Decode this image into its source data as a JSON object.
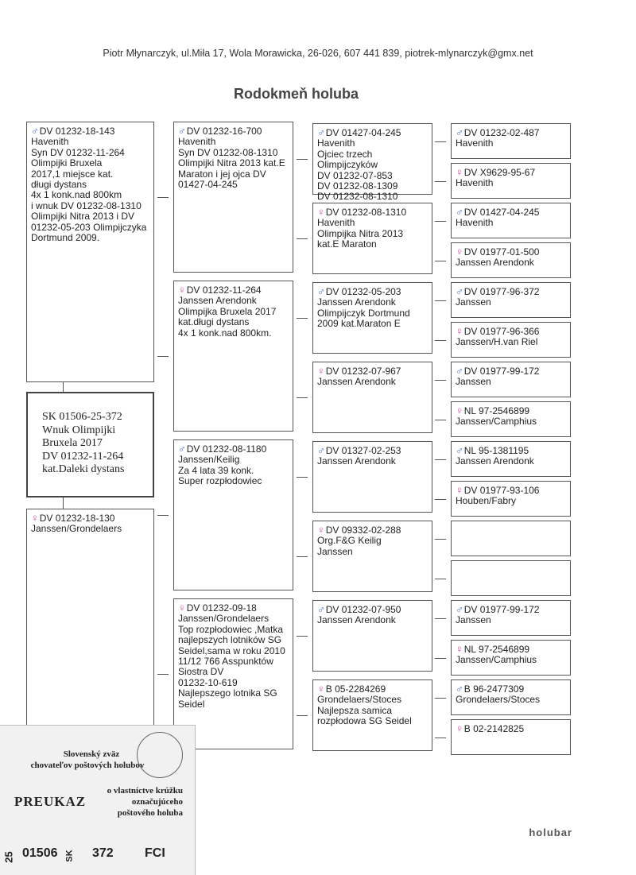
{
  "header": {
    "contact": "Piotr Młynarczyk, ul.Miła 17, Wola Morawicka, 26-026, 607 441 839, piotrek-mlynarczyk@gmx.net",
    "title": "Rodokmeň holuba"
  },
  "subject": {
    "lines": [
      "SK 01506-25-372",
      "Wnuk Olimpijki",
      "Bruxela 2017",
      "DV 01232-11-264",
      "kat.Daleki dystans"
    ]
  },
  "pedigree": {
    "parents": [
      {
        "sex": "m",
        "lines": [
          "DV 01232-18-143",
          "Havenith",
          "Syn DV 01232-11-264",
          "Olimpijki Bruxela",
          "2017,1 miejsce kat.",
          "długi dystans",
          "4x 1 konk.nad 800km",
          "i wnuk DV 01232-08-1310",
          "Olimpijki Nitra 2013 i DV",
          "01232-05-203 Olimpijczyka",
          "Dortmund 2009."
        ]
      },
      {
        "sex": "f",
        "lines": [
          "DV 01232-18-130",
          "Janssen/Grondelaers"
        ]
      }
    ],
    "grandparents": [
      {
        "sex": "m",
        "lines": [
          "DV 01232-16-700",
          "Havenith",
          "Syn DV 01232-08-1310",
          "Olimpijki Nitra 2013 kat.E",
          "Maraton i jej ojca DV",
          "01427-04-245"
        ]
      },
      {
        "sex": "f",
        "lines": [
          "DV 01232-11-264",
          "Janssen Arendonk",
          "Olimpijka Bruxela 2017",
          "kat.długi dystans",
          "4x 1 konk.nad 800km."
        ]
      },
      {
        "sex": "m",
        "lines": [
          "DV 01232-08-1180",
          "Janssen/Keilig",
          "Za 4 lata 39 konk.",
          "Super rozpłodowiec"
        ]
      },
      {
        "sex": "f",
        "lines": [
          "DV 01232-09-18",
          "Janssen/Grondelaers",
          "Top rozpłodowiec ,Matka",
          "najlepszych lotników SG",
          "Seidel,sama w roku 2010",
          "11/12 766 Asspunktów",
          "Siostra DV",
          "01232-10-619",
          "Najlepszego lotnika SG",
          "Seidel"
        ]
      }
    ],
    "great_grandparents": [
      {
        "sex": "m",
        "lines": [
          "DV 01427-04-245",
          "Havenith",
          "Ojciec trzech",
          "Olimpijczyków",
          "DV 01232-07-853",
          "DV 01232-08-1309",
          "DV 01232-08-1310"
        ]
      },
      {
        "sex": "f",
        "lines": [
          "DV 01232-08-1310",
          "Havenith",
          "Olimpijka Nitra 2013",
          "kat.E Maraton"
        ]
      },
      {
        "sex": "m",
        "lines": [
          "DV 01232-05-203",
          "Janssen Arendonk",
          "Olimpijczyk Dortmund",
          "2009 kat.Maraton E"
        ]
      },
      {
        "sex": "f",
        "lines": [
          "DV 01232-07-967",
          "Janssen Arendonk"
        ]
      },
      {
        "sex": "m",
        "lines": [
          "DV 01327-02-253",
          "Janssen Arendonk"
        ]
      },
      {
        "sex": "f",
        "lines": [
          "DV 09332-02-288",
          "Org.F&G Keilig",
          "Janssen"
        ]
      },
      {
        "sex": "m",
        "lines": [
          "DV 01232-07-950",
          "Janssen Arendonk"
        ]
      },
      {
        "sex": "f",
        "lines": [
          "B 05-2284269",
          "Grondelaers/Stoces",
          "Najlepsza samica",
          "rozpłodowa SG Seidel"
        ]
      }
    ],
    "great_great_grandparents": [
      {
        "sex": "m",
        "lines": [
          "DV 01232-02-487",
          "Havenith"
        ]
      },
      {
        "sex": "f",
        "lines": [
          "DV X9629-95-67",
          "Havenith"
        ]
      },
      {
        "sex": "m",
        "lines": [
          "DV 01427-04-245",
          "Havenith"
        ]
      },
      {
        "sex": "f",
        "lines": [
          "DV 01977-01-500",
          "Janssen Arendonk"
        ]
      },
      {
        "sex": "m",
        "lines": [
          "DV 01977-96-372",
          "Janssen"
        ]
      },
      {
        "sex": "f",
        "lines": [
          "DV 01977-96-366",
          "Janssen/H.van Riel"
        ]
      },
      {
        "sex": "m",
        "lines": [
          "DV 01977-99-172",
          "Janssen"
        ]
      },
      {
        "sex": "f",
        "lines": [
          "NL 97-2546899",
          "Janssen/Camphius"
        ]
      },
      {
        "sex": "m",
        "lines": [
          "NL 95-1381195",
          "Janssen Arendonk"
        ]
      },
      {
        "sex": "f",
        "lines": [
          "DV 01977-93-106",
          "Houben/Fabry"
        ]
      },
      {
        "sex": null,
        "lines": []
      },
      {
        "sex": null,
        "lines": []
      },
      {
        "sex": "m",
        "lines": [
          "DV 01977-99-172",
          "Janssen"
        ]
      },
      {
        "sex": "f",
        "lines": [
          "NL 97-2546899",
          "Janssen/Camphius"
        ]
      },
      {
        "sex": "m",
        "lines": [
          "B 96-2477309",
          "Grondelaers/Stoces"
        ]
      },
      {
        "sex": "f",
        "lines": [
          "B 02-2142825"
        ]
      }
    ]
  },
  "card": {
    "org1": "Slovenský zväz",
    "org2": "chovateľov poštových holubov",
    "doc": "PREUKAZ",
    "desc1": "o vlastníctve krúžku",
    "desc2": "označujúceho",
    "desc3": "poštového holuba",
    "year": "25",
    "number": "01506",
    "country": "SK",
    "ring": "372",
    "fci": "FCI"
  },
  "footer": {
    "logo": "holubar"
  }
}
